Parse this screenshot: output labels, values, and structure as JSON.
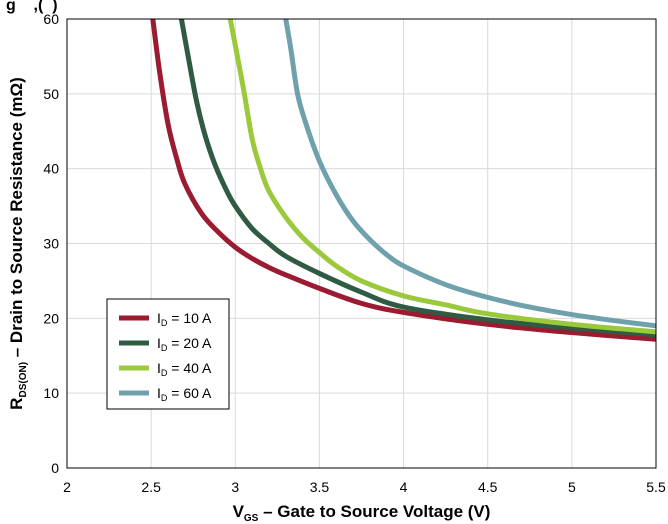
{
  "caption_fragment": "g    ,(  )",
  "chart_data": {
    "type": "line",
    "xlabel": {
      "main": "V",
      "sub": "GS",
      "rest": " – Gate to Source Voltage (V)"
    },
    "ylabel": {
      "main": "R",
      "sub": "DS(ON)",
      "rest": " – Drain to Source Resistance (mΩ)"
    },
    "xlim": [
      2,
      5.5
    ],
    "ylim": [
      0,
      60
    ],
    "xticks": [
      2,
      2.5,
      3,
      3.5,
      4,
      4.5,
      5,
      5.5
    ],
    "xtick_labels": [
      "2",
      "2.5",
      "3",
      "3.5",
      "4",
      "4.5",
      "5",
      "5.5"
    ],
    "yticks": [
      0,
      10,
      20,
      30,
      40,
      50,
      60
    ],
    "ytick_labels": [
      "0",
      "10",
      "20",
      "30",
      "40",
      "50",
      "60"
    ],
    "grid": true,
    "legend_position": "bottom-left",
    "series": [
      {
        "name": "I",
        "name_sub": "D",
        "name_rest": " = 10 A",
        "color": "#9b1b30",
        "x": [
          2.51,
          2.55,
          2.6,
          2.65,
          2.7,
          2.8,
          2.9,
          3.0,
          3.1,
          3.2,
          3.3,
          3.5,
          3.75,
          4.0,
          4.5,
          5.0,
          5.5
        ],
        "y": [
          60,
          53,
          46,
          41.5,
          38,
          34,
          31.5,
          29.5,
          28,
          26.8,
          25.8,
          24,
          22,
          20.8,
          19.2,
          18.1,
          17.2
        ]
      },
      {
        "name": "I",
        "name_sub": "D",
        "name_rest": " = 20 A",
        "color": "#2f5b43",
        "x": [
          2.68,
          2.72,
          2.77,
          2.82,
          2.88,
          2.95,
          3.0,
          3.1,
          3.2,
          3.3,
          3.5,
          3.75,
          4.0,
          4.5,
          5.0,
          5.5
        ],
        "y": [
          60,
          55,
          49,
          44.5,
          40.5,
          37,
          35,
          32,
          30,
          28.3,
          26,
          23.5,
          21.5,
          19.8,
          18.7,
          17.8
        ]
      },
      {
        "name": "I",
        "name_sub": "D",
        "name_rest": " = 40 A",
        "color": "#9ac93c",
        "x": [
          2.97,
          3.0,
          3.05,
          3.1,
          3.15,
          3.2,
          3.3,
          3.4,
          3.5,
          3.6,
          3.75,
          4.0,
          4.25,
          4.5,
          5.0,
          5.5
        ],
        "y": [
          60,
          56.5,
          50.5,
          44,
          40,
          37,
          33.5,
          30.8,
          28.8,
          27,
          25,
          23,
          21.8,
          20.6,
          19.2,
          18.2
        ]
      },
      {
        "name": "I",
        "name_sub": "D",
        "name_rest": " = 60 A",
        "color": "#6ea1ab",
        "x": [
          3.3,
          3.33,
          3.37,
          3.42,
          3.5,
          3.6,
          3.7,
          3.8,
          3.9,
          4.0,
          4.25,
          4.5,
          4.75,
          5.0,
          5.25,
          5.5
        ],
        "y": [
          60,
          56,
          50,
          46,
          41,
          36.5,
          33,
          30.5,
          28.5,
          27,
          24.5,
          22.8,
          21.5,
          20.5,
          19.7,
          19
        ]
      }
    ]
  }
}
